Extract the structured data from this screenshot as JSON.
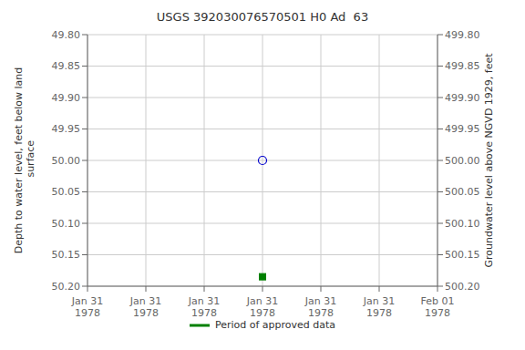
{
  "chart_data": {
    "type": "scatter",
    "title": "USGS 392030076570501 H0 Ad  63",
    "y_label": "Depth to water level, feet below land\n surface",
    "y2_label": "Groundwater level above NGVD 1929, feet",
    "categories": [
      "Jan 31\n1978",
      "Jan 31\n1978",
      "Jan 31\n1978",
      "Jan 31\n1978",
      "Jan 31\n1978",
      "Jan 31\n1978",
      "Feb 01\n1978"
    ],
    "series": [
      {
        "color": "#0000cc",
        "marker": "circle_open",
        "values": [
          null,
          null,
          null,
          50.0,
          null,
          null,
          null
        ]
      },
      {
        "name": "Period of approved data",
        "color": "#008000",
        "marker": "square",
        "values": [
          null,
          null,
          null,
          50.185,
          null,
          null,
          null
        ]
      }
    ],
    "ylim": [
      50.2,
      49.8
    ],
    "yticks": [
      {
        "value": 49.8,
        "label": "49.80"
      },
      {
        "value": 49.85,
        "label": "49.85"
      },
      {
        "value": 49.9,
        "label": "49.90"
      },
      {
        "value": 49.95,
        "label": "49.95"
      },
      {
        "value": 50.0,
        "label": "50.00"
      },
      {
        "value": 50.05,
        "label": "50.05"
      },
      {
        "value": 50.1,
        "label": "50.10"
      },
      {
        "value": 50.15,
        "label": "50.15"
      },
      {
        "value": 50.2,
        "label": "50.20"
      }
    ],
    "y2lim": [
      500.2,
      499.8
    ],
    "y2ticks": [
      {
        "value": 500.2,
        "label": "500.20"
      },
      {
        "value": 500.15,
        "label": "500.15"
      },
      {
        "value": 500.1,
        "label": "500.10"
      },
      {
        "value": 500.05,
        "label": "500.05"
      },
      {
        "value": 500.0,
        "label": "500.00"
      },
      {
        "value": 499.95,
        "label": "499.95"
      },
      {
        "value": 499.9,
        "label": "499.90"
      },
      {
        "value": 499.85,
        "label": "499.85"
      },
      {
        "value": 499.8,
        "label": "499.80"
      }
    ],
    "grid": true,
    "legend": "bottom"
  }
}
